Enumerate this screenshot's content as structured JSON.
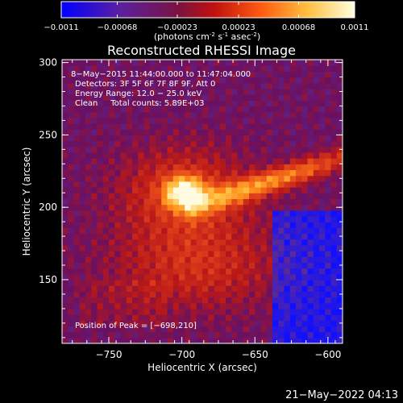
{
  "colorbar": {
    "tick_labels": [
      "-0.0011",
      "-0.00068",
      "-0.00023",
      "0.00023",
      "0.00068",
      "0.0011"
    ],
    "range": [
      -0.0011,
      0.0011
    ],
    "unit_label_pre": "(photons cm",
    "unit_label_exp1": "-2",
    "unit_label_mid": " s",
    "unit_label_exp2": "-1",
    "unit_label_mid2": " asec",
    "unit_label_exp3": "-2",
    "unit_label_post": ")"
  },
  "chart_data": {
    "type": "heatmap",
    "title": "Reconstructed RHESSI Image",
    "xlabel": "Heliocentric X (arcsec)",
    "ylabel": "Heliocentric Y (arcsec)",
    "xlim": [
      -782,
      -590
    ],
    "ylim": [
      106,
      302
    ],
    "x_ticks": [
      -750,
      -700,
      -650,
      -600
    ],
    "y_ticks": [
      150,
      200,
      250,
      300
    ],
    "x_tick_labels": [
      "−750",
      "−700",
      "−650",
      "−600"
    ],
    "y_tick_labels": [
      "150",
      "200",
      "250",
      "300"
    ],
    "peak": [
      -698,
      210
    ],
    "annotations": [
      "8−May−2015 11:44:00.000 to 11:47:04.000",
      "Detectors: 3F 5F 6F 7F 8F 9F, Att 0",
      "Energy Range: 12.0 − 25.0 keV",
      "Clean     Total counts: 5.89E+03"
    ],
    "peak_label": "Position of Peak = [−698,210]",
    "colormap": [
      "#1010ff",
      "#5a2a9a",
      "#6a1060",
      "#b81818",
      "#e0401a",
      "#ff8a1a",
      "#ffc84a",
      "#fffbe0"
    ]
  },
  "footer": {
    "timestamp": "21−May−2022 04:13"
  }
}
